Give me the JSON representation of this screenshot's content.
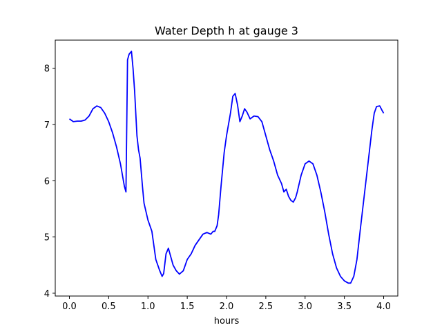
{
  "chart_data": {
    "type": "line",
    "title": "Water Depth h at gauge 3",
    "xlabel": "hours",
    "ylabel": "",
    "xlim": [
      -0.18,
      4.18
    ],
    "ylim": [
      3.95,
      8.5
    ],
    "grid": false,
    "x_ticks": [
      0.0,
      0.5,
      1.0,
      1.5,
      2.0,
      2.5,
      3.0,
      3.5,
      4.0
    ],
    "x_tick_labels": [
      "0.0",
      "0.5",
      "1.0",
      "1.5",
      "2.0",
      "2.5",
      "3.0",
      "3.5",
      "4.0"
    ],
    "y_ticks": [
      4,
      5,
      6,
      7,
      8
    ],
    "y_tick_labels": [
      "4",
      "5",
      "6",
      "7",
      "8"
    ],
    "series": [
      {
        "name": "",
        "color": "#0000ff",
        "x": [
          0.0,
          0.05,
          0.1,
          0.15,
          0.2,
          0.25,
          0.3,
          0.35,
          0.4,
          0.45,
          0.5,
          0.55,
          0.6,
          0.65,
          0.7,
          0.72,
          0.74,
          0.76,
          0.79,
          0.81,
          0.83,
          0.86,
          0.88,
          0.9,
          0.93,
          0.95,
          1.0,
          1.05,
          1.1,
          1.15,
          1.18,
          1.2,
          1.23,
          1.26,
          1.29,
          1.32,
          1.36,
          1.4,
          1.45,
          1.5,
          1.55,
          1.6,
          1.65,
          1.7,
          1.75,
          1.8,
          1.83,
          1.85,
          1.88,
          1.9,
          1.93,
          1.97,
          2.0,
          2.05,
          2.08,
          2.11,
          2.14,
          2.17,
          2.2,
          2.23,
          2.26,
          2.3,
          2.35,
          2.4,
          2.45,
          2.5,
          2.55,
          2.6,
          2.65,
          2.7,
          2.73,
          2.76,
          2.79,
          2.82,
          2.85,
          2.88,
          2.9,
          2.95,
          3.0,
          3.05,
          3.1,
          3.15,
          3.2,
          3.25,
          3.3,
          3.35,
          3.4,
          3.45,
          3.5,
          3.55,
          3.58,
          3.62,
          3.66,
          3.7,
          3.75,
          3.8,
          3.85,
          3.88,
          3.91,
          3.95,
          3.98,
          4.0
        ],
        "y": [
          7.1,
          7.05,
          7.06,
          7.06,
          7.08,
          7.15,
          7.28,
          7.33,
          7.3,
          7.2,
          7.05,
          6.85,
          6.6,
          6.3,
          5.9,
          5.8,
          8.15,
          8.25,
          8.3,
          8.0,
          7.6,
          6.8,
          6.55,
          6.4,
          5.9,
          5.6,
          5.3,
          5.1,
          4.6,
          4.4,
          4.3,
          4.35,
          4.7,
          4.8,
          4.65,
          4.5,
          4.4,
          4.34,
          4.4,
          4.6,
          4.7,
          4.85,
          4.95,
          5.05,
          5.08,
          5.05,
          5.1,
          5.1,
          5.2,
          5.4,
          5.9,
          6.5,
          6.8,
          7.2,
          7.5,
          7.55,
          7.35,
          7.05,
          7.15,
          7.28,
          7.22,
          7.1,
          7.15,
          7.14,
          7.05,
          6.8,
          6.55,
          6.35,
          6.1,
          5.95,
          5.8,
          5.85,
          5.72,
          5.65,
          5.62,
          5.7,
          5.8,
          6.1,
          6.3,
          6.35,
          6.3,
          6.1,
          5.8,
          5.45,
          5.05,
          4.7,
          4.45,
          4.3,
          4.22,
          4.18,
          4.18,
          4.3,
          4.6,
          5.1,
          5.7,
          6.3,
          6.9,
          7.2,
          7.32,
          7.33,
          7.25,
          7.2
        ]
      }
    ]
  }
}
